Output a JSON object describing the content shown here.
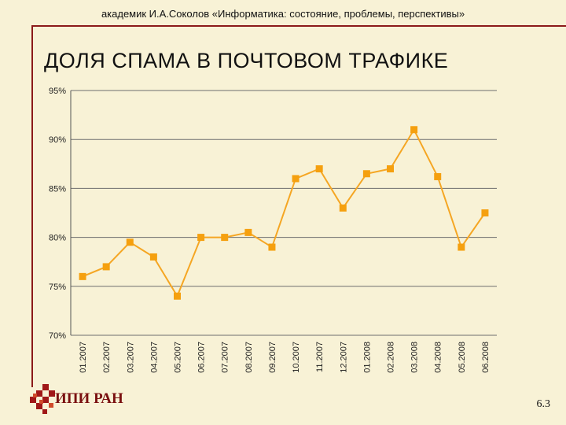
{
  "header": {
    "text": "академик И.А.Соколов «Информатика: состояние, проблемы, перспективы»"
  },
  "slide": {
    "title": "ДОЛЯ СПАМА В ПОЧТОВОМ ТРАФИКЕ",
    "page_number": "6.3"
  },
  "logo": {
    "text": "ИПИ РАН",
    "color": "#7a1010"
  },
  "colors": {
    "background": "#f8f2d6",
    "series": "#f5a623",
    "marker": "#f5a00f",
    "grid": "#6e6e6e",
    "frame": "#8b1a1a"
  },
  "chart_data": {
    "type": "line",
    "title": "",
    "xlabel": "",
    "ylabel": "",
    "ylim": [
      70,
      95
    ],
    "y_ticks": [
      95,
      90,
      85,
      80,
      75,
      70
    ],
    "y_tick_labels": [
      "95%",
      "90%",
      "85%",
      "80%",
      "75%",
      "70%"
    ],
    "grid": true,
    "categories": [
      "01.2007",
      "02.2007",
      "03.2007",
      "04.2007",
      "05.2007",
      "06.2007",
      "07.2007",
      "08.2007",
      "09.2007",
      "10.2007",
      "11.2007",
      "12.2007",
      "01.2008",
      "02.2008",
      "03.2008",
      "04.2008",
      "05.2008",
      "06.2008"
    ],
    "values": [
      76,
      77,
      79.5,
      78,
      74,
      80,
      80,
      80.5,
      79,
      86,
      87,
      83,
      86.5,
      87,
      91,
      86.2,
      79,
      82.5
    ]
  }
}
